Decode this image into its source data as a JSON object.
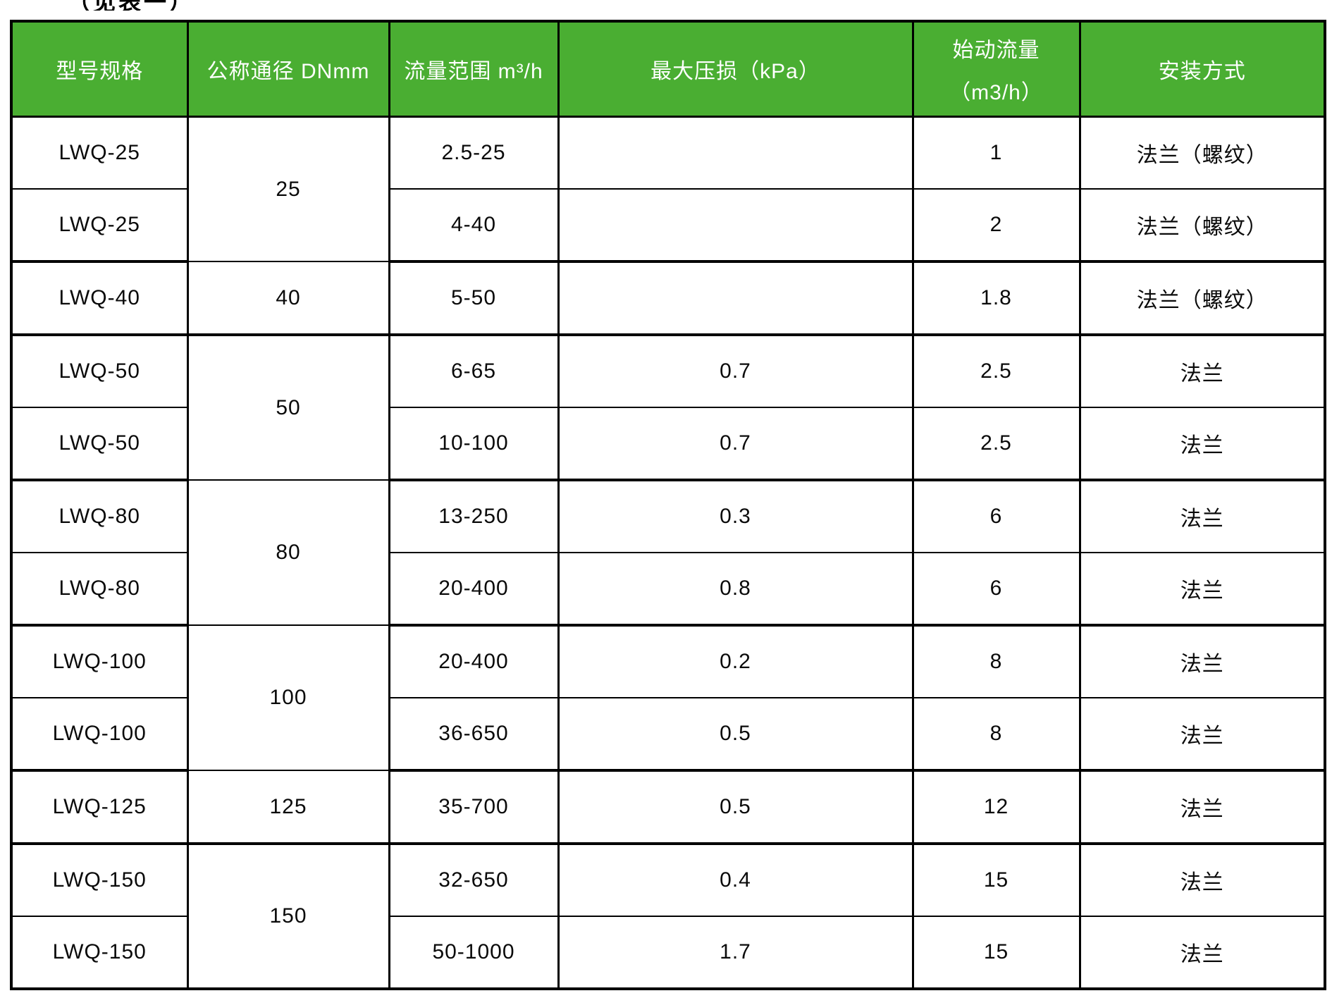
{
  "caption": "（见表一）",
  "table": {
    "header_bg": "#4aae32",
    "header_text_color": "#ffffff",
    "columns": {
      "model": "型号规格",
      "dn": "公称通径 DNmm",
      "flow_range": "流量范围 m³/h",
      "max_loss": "最大压损（kPa）",
      "start_flow_line1": "始动流量",
      "start_flow_line2": "（m3/h）",
      "install": "安装方式"
    },
    "rows": [
      {
        "model": "LWQ-25",
        "dn": "25",
        "dn_span": 2,
        "flow": "2.5-25",
        "loss": "",
        "start": "1",
        "install": "法兰（螺纹）",
        "group_end": false
      },
      {
        "model": "LWQ-25",
        "flow": "4-40",
        "loss": "",
        "start": "2",
        "install": "法兰（螺纹）",
        "group_end": true
      },
      {
        "model": "LWQ-40",
        "dn": "40",
        "dn_span": 1,
        "flow": "5-50",
        "loss": "",
        "start": "1.8",
        "install": "法兰（螺纹）",
        "group_end": true
      },
      {
        "model": "LWQ-50",
        "dn": "50",
        "dn_span": 2,
        "flow": "6-65",
        "loss": "0.7",
        "start": "2.5",
        "install": "法兰",
        "group_end": false
      },
      {
        "model": "LWQ-50",
        "flow": "10-100",
        "loss": "0.7",
        "start": "2.5",
        "install": "法兰",
        "group_end": true
      },
      {
        "model": "LWQ-80",
        "dn": "80",
        "dn_span": 2,
        "flow": "13-250",
        "loss": "0.3",
        "start": "6",
        "install": "法兰",
        "group_end": false
      },
      {
        "model": "LWQ-80",
        "flow": "20-400",
        "loss": "0.8",
        "start": "6",
        "install": "法兰",
        "group_end": true
      },
      {
        "model": "LWQ-100",
        "dn": "100",
        "dn_span": 2,
        "flow": "20-400",
        "loss": "0.2",
        "start": "8",
        "install": "法兰",
        "group_end": false
      },
      {
        "model": "LWQ-100",
        "flow": "36-650",
        "loss": "0.5",
        "start": "8",
        "install": "法兰",
        "group_end": true
      },
      {
        "model": "LWQ-125",
        "dn": "125",
        "dn_span": 1,
        "flow": "35-700",
        "loss": "0.5",
        "start": "12",
        "install": "法兰",
        "group_end": true
      },
      {
        "model": "LWQ-150",
        "dn": "150",
        "dn_span": 2,
        "flow": "32-650",
        "loss": "0.4",
        "start": "15",
        "install": "法兰",
        "group_end": false
      },
      {
        "model": "LWQ-150",
        "flow": "50-1000",
        "loss": "1.7",
        "start": "15",
        "install": "法兰",
        "group_end": true
      }
    ]
  }
}
